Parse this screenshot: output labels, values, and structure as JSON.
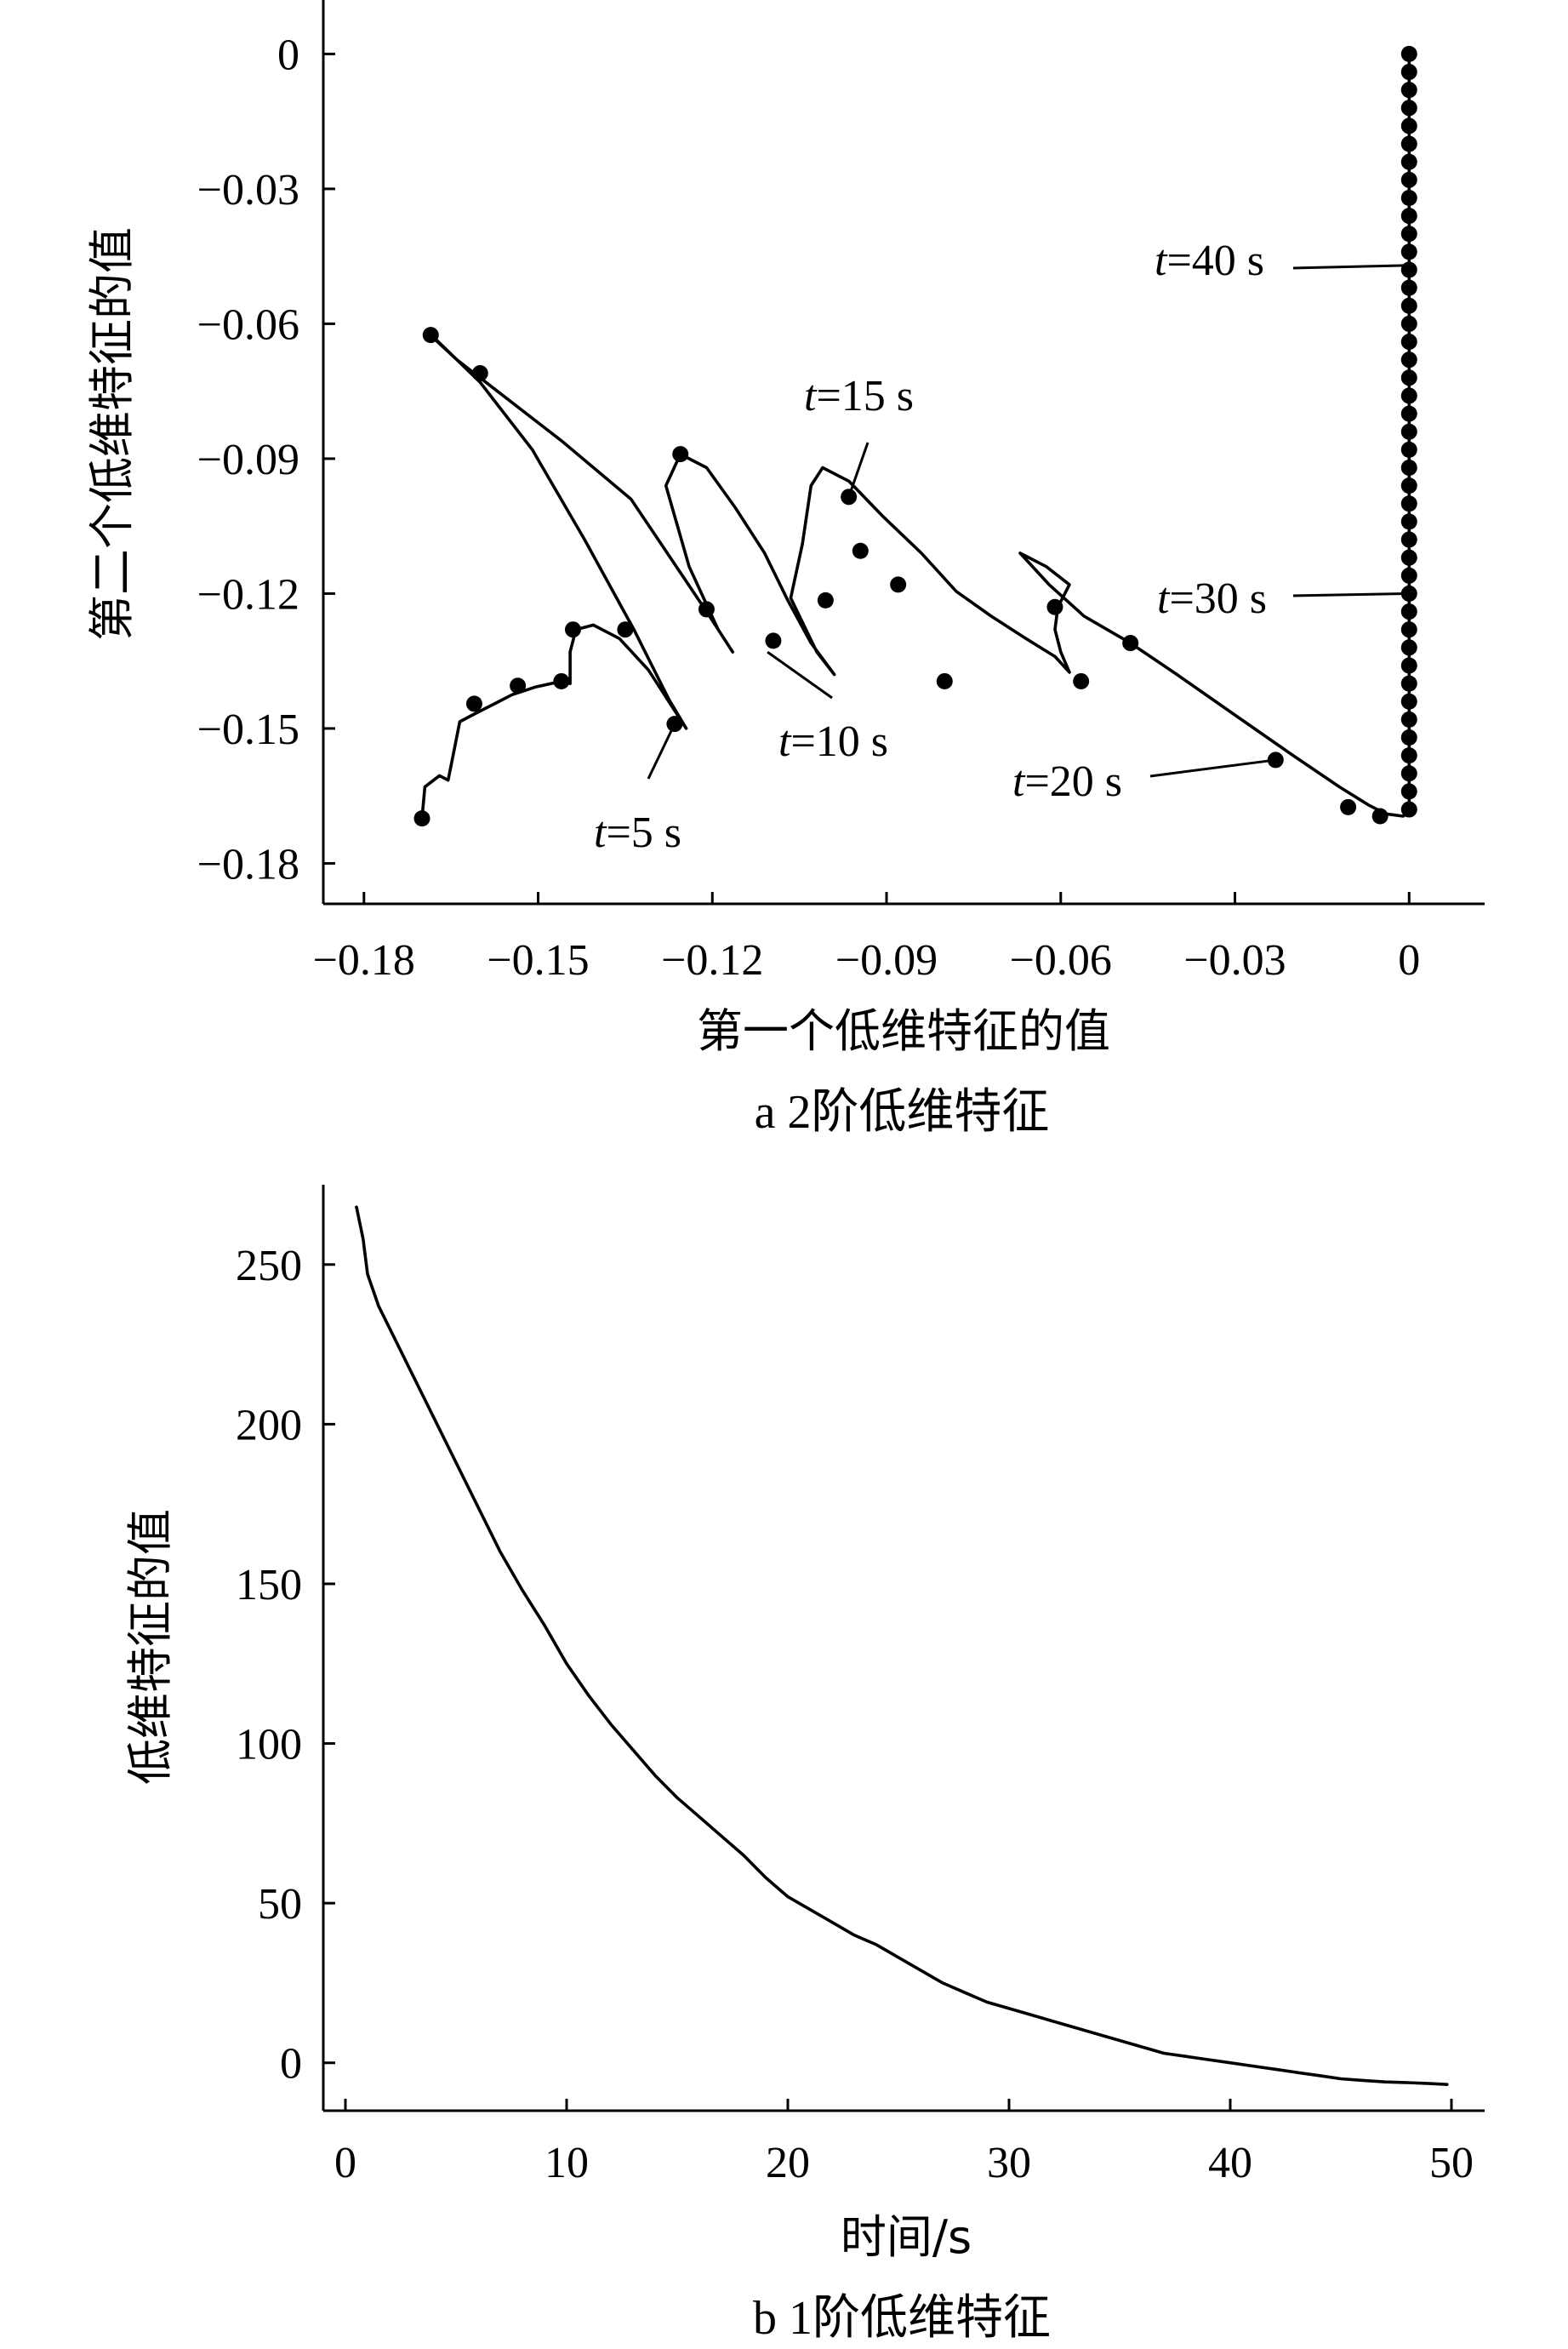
{
  "chart_data": [
    {
      "type": "line",
      "caption": "a  2阶低维特征",
      "xlabel": "第一个低维特征的值",
      "ylabel": "第二个低维特征的值",
      "xlim": [
        -0.187,
        0.013
      ],
      "ylim": [
        -0.189,
        0.012
      ],
      "xticks": [
        "−0.18",
        "−0.15",
        "−0.12",
        "−0.09",
        "−0.06",
        "−0.03",
        "0"
      ],
      "xtick_values": [
        -0.18,
        -0.15,
        -0.12,
        -0.09,
        -0.06,
        -0.03,
        0
      ],
      "yticks": [
        "0",
        "−0.03",
        "−0.06",
        "−0.09",
        "−0.12",
        "−0.15",
        "−0.18"
      ],
      "ytick_values": [
        0,
        -0.03,
        -0.06,
        -0.09,
        -0.12,
        -0.15,
        -0.18
      ],
      "grid": false,
      "legend": "none",
      "series": [
        {
          "curve": [
            [
              -0.17,
              -0.17
            ],
            [
              -0.1695,
              -0.163
            ],
            [
              -0.167,
              -0.1605
            ],
            [
              -0.1655,
              -0.1615
            ],
            [
              -0.1645,
              -0.155
            ],
            [
              -0.1635,
              -0.1485
            ],
            [
              -0.161,
              -0.1468
            ],
            [
              -0.1575,
              -0.1445
            ],
            [
              -0.1545,
              -0.1425
            ],
            [
              -0.1505,
              -0.1408
            ],
            [
              -0.147,
              -0.1398
            ],
            [
              -0.1445,
              -0.14
            ],
            [
              -0.1445,
              -0.133
            ],
            [
              -0.1435,
              -0.128
            ],
            [
              -0.1405,
              -0.127
            ],
            [
              -0.136,
              -0.13
            ],
            [
              -0.131,
              -0.137
            ],
            [
              -0.127,
              -0.145
            ],
            [
              -0.1245,
              -0.15
            ],
            [
              -0.1275,
              -0.1435
            ],
            [
              -0.1335,
              -0.128
            ],
            [
              -0.142,
              -0.108
            ],
            [
              -0.151,
              -0.088
            ],
            [
              -0.16,
              -0.073
            ],
            [
              -0.168,
              -0.063
            ],
            [
              -0.169,
              -0.062
            ],
            [
              -0.164,
              -0.068
            ],
            [
              -0.158,
              -0.074
            ],
            [
              -0.146,
              -0.086
            ],
            [
              -0.134,
              -0.099
            ],
            [
              -0.121,
              -0.124
            ],
            [
              -0.1165,
              -0.133
            ],
            [
              -0.119,
              -0.128
            ],
            [
              -0.124,
              -0.114
            ],
            [
              -0.128,
              -0.096
            ],
            [
              -0.1255,
              -0.089
            ],
            [
              -0.121,
              -0.092
            ],
            [
              -0.116,
              -0.101
            ],
            [
              -0.111,
              -0.111
            ],
            [
              -0.107,
              -0.1215
            ],
            [
              -0.103,
              -0.131
            ],
            [
              -0.099,
              -0.138
            ],
            [
              -0.102,
              -0.133
            ],
            [
              -0.1065,
              -0.121
            ],
            [
              -0.1045,
              -0.109
            ],
            [
              -0.103,
              -0.096
            ],
            [
              -0.101,
              -0.092
            ],
            [
              -0.0965,
              -0.095
            ],
            [
              -0.0905,
              -0.103
            ],
            [
              -0.084,
              -0.111
            ],
            [
              -0.078,
              -0.1195
            ],
            [
              -0.072,
              -0.125
            ],
            [
              -0.066,
              -0.13
            ],
            [
              -0.061,
              -0.134
            ],
            [
              -0.0585,
              -0.1375
            ],
            [
              -0.06,
              -0.133
            ],
            [
              -0.061,
              -0.128
            ],
            [
              -0.0605,
              -0.123
            ],
            [
              -0.0585,
              -0.118
            ],
            [
              -0.0625,
              -0.114
            ],
            [
              -0.067,
              -0.111
            ],
            [
              -0.062,
              -0.118
            ],
            [
              -0.056,
              -0.125
            ],
            [
              -0.048,
              -0.131
            ],
            [
              -0.04,
              -0.138
            ],
            [
              -0.03,
              -0.147
            ],
            [
              -0.02,
              -0.156
            ],
            [
              -0.012,
              -0.163
            ],
            [
              -0.007,
              -0.167
            ],
            [
              -0.004,
              -0.169
            ],
            [
              -0.001,
              -0.1695
            ],
            [
              0.0,
              -0.168
            ],
            [
              0.0,
              -0.15
            ],
            [
              0.0,
              -0.1
            ],
            [
              0.0,
              -0.05
            ],
            [
              0.0,
              0.0
            ]
          ],
          "markers": [
            [
              -0.17,
              -0.17
            ],
            [
              -0.161,
              -0.1445
            ],
            [
              -0.1535,
              -0.1405
            ],
            [
              -0.146,
              -0.1395
            ],
            [
              -0.144,
              -0.128
            ],
            [
              -0.135,
              -0.128
            ],
            [
              -0.1265,
              -0.149
            ],
            [
              -0.1685,
              -0.0625
            ],
            [
              -0.16,
              -0.071
            ],
            [
              -0.1255,
              -0.089
            ],
            [
              -0.121,
              -0.1235
            ],
            [
              -0.1095,
              -0.1305
            ],
            [
              -0.1005,
              -0.1215
            ],
            [
              -0.0965,
              -0.0985
            ],
            [
              -0.0945,
              -0.1105
            ],
            [
              -0.088,
              -0.118
            ],
            [
              -0.08,
              -0.1395
            ],
            [
              -0.061,
              -0.123
            ],
            [
              -0.0565,
              -0.1395
            ],
            [
              -0.048,
              -0.131
            ],
            [
              -0.023,
              -0.157
            ],
            [
              -0.0105,
              -0.1675
            ],
            [
              -0.005,
              -0.1695
            ],
            [
              0.0,
              -0.168
            ],
            [
              0.0,
              -0.164
            ],
            [
              0.0,
              -0.16
            ],
            [
              0.0,
              -0.156
            ],
            [
              0.0,
              -0.152
            ],
            [
              0.0,
              -0.148
            ],
            [
              0.0,
              -0.144
            ],
            [
              0.0,
              -0.14
            ],
            [
              0.0,
              -0.136
            ],
            [
              0.0,
              -0.132
            ],
            [
              0.0,
              -0.128
            ],
            [
              0.0,
              -0.124
            ],
            [
              0.0,
              -0.12
            ],
            [
              0.0,
              -0.116
            ],
            [
              0.0,
              -0.112
            ],
            [
              0.0,
              -0.108
            ],
            [
              0.0,
              -0.104
            ],
            [
              0.0,
              -0.1
            ],
            [
              0.0,
              -0.096
            ],
            [
              0.0,
              -0.092
            ],
            [
              0.0,
              -0.088
            ],
            [
              0.0,
              -0.084
            ],
            [
              0.0,
              -0.08
            ],
            [
              0.0,
              -0.076
            ],
            [
              0.0,
              -0.072
            ],
            [
              0.0,
              -0.068
            ],
            [
              0.0,
              -0.064
            ],
            [
              0.0,
              -0.06
            ],
            [
              0.0,
              -0.056
            ],
            [
              0.0,
              -0.052
            ],
            [
              0.0,
              -0.048
            ],
            [
              0.0,
              -0.044
            ],
            [
              0.0,
              -0.04
            ],
            [
              0.0,
              -0.036
            ],
            [
              0.0,
              -0.032
            ],
            [
              0.0,
              -0.028
            ],
            [
              0.0,
              -0.024
            ],
            [
              0.0,
              -0.02
            ],
            [
              0.0,
              -0.016
            ],
            [
              0.0,
              -0.012
            ],
            [
              0.0,
              -0.008
            ],
            [
              0.0,
              -0.004
            ],
            [
              0.0,
              0.0
            ]
          ]
        }
      ],
      "annotations": [
        {
          "t": "t",
          "rest": "=5 s",
          "point": [
            -0.1265,
            -0.149
          ]
        },
        {
          "t": "t",
          "rest": "=10 s",
          "point": [
            -0.1105,
            -0.133
          ]
        },
        {
          "t": "t",
          "rest": "=15 s",
          "point": [
            -0.0965,
            -0.0985
          ]
        },
        {
          "t": "t",
          "rest": "=20 s",
          "point": [
            -0.023,
            -0.157
          ]
        },
        {
          "t": "t",
          "rest": "=30 s",
          "point": [
            0.0,
            -0.12
          ]
        },
        {
          "t": "t",
          "rest": "=40 s",
          "point": [
            0.0,
            -0.047
          ]
        }
      ]
    },
    {
      "type": "line",
      "caption": "b  1阶低维特征",
      "xlabel": "时间/s",
      "ylabel": "低维特征的值",
      "xlim": [
        -1.0,
        51.5
      ],
      "ylim": [
        -15,
        275
      ],
      "xticks": [
        "0",
        "10",
        "20",
        "30",
        "40",
        "50"
      ],
      "xtick_values": [
        0,
        10,
        20,
        30,
        40,
        50
      ],
      "yticks": [
        "250",
        "200",
        "150",
        "100",
        "50",
        "0"
      ],
      "ytick_values": [
        250,
        200,
        150,
        100,
        50,
        0
      ],
      "grid": false,
      "legend": "none",
      "series": [
        {
          "x": [
            0.5,
            0.8,
            1.0,
            1.5,
            2,
            3,
            4,
            5,
            6,
            7,
            8,
            9,
            10,
            11,
            12,
            13,
            14,
            15,
            16,
            17,
            18,
            19,
            20,
            21,
            22,
            23,
            24,
            25,
            26,
            27,
            28,
            29,
            30,
            31,
            32,
            33,
            34,
            35,
            36,
            37,
            38,
            39,
            40,
            41,
            42,
            43,
            44,
            45,
            46,
            47,
            48,
            49,
            49.8
          ],
          "y": [
            268,
            258,
            247,
            237,
            230,
            216,
            202,
            188,
            174,
            160,
            148,
            137,
            125,
            115,
            106,
            98,
            90,
            83,
            77,
            71,
            65,
            58,
            52,
            48,
            44,
            40,
            37,
            33,
            29,
            25,
            22,
            19,
            17,
            15,
            13,
            11,
            9,
            7,
            5,
            3,
            2,
            1,
            0,
            -1,
            -2,
            -3,
            -4,
            -5,
            -5.5,
            -6,
            -6.2,
            -6.5,
            -6.8
          ]
        }
      ]
    }
  ]
}
